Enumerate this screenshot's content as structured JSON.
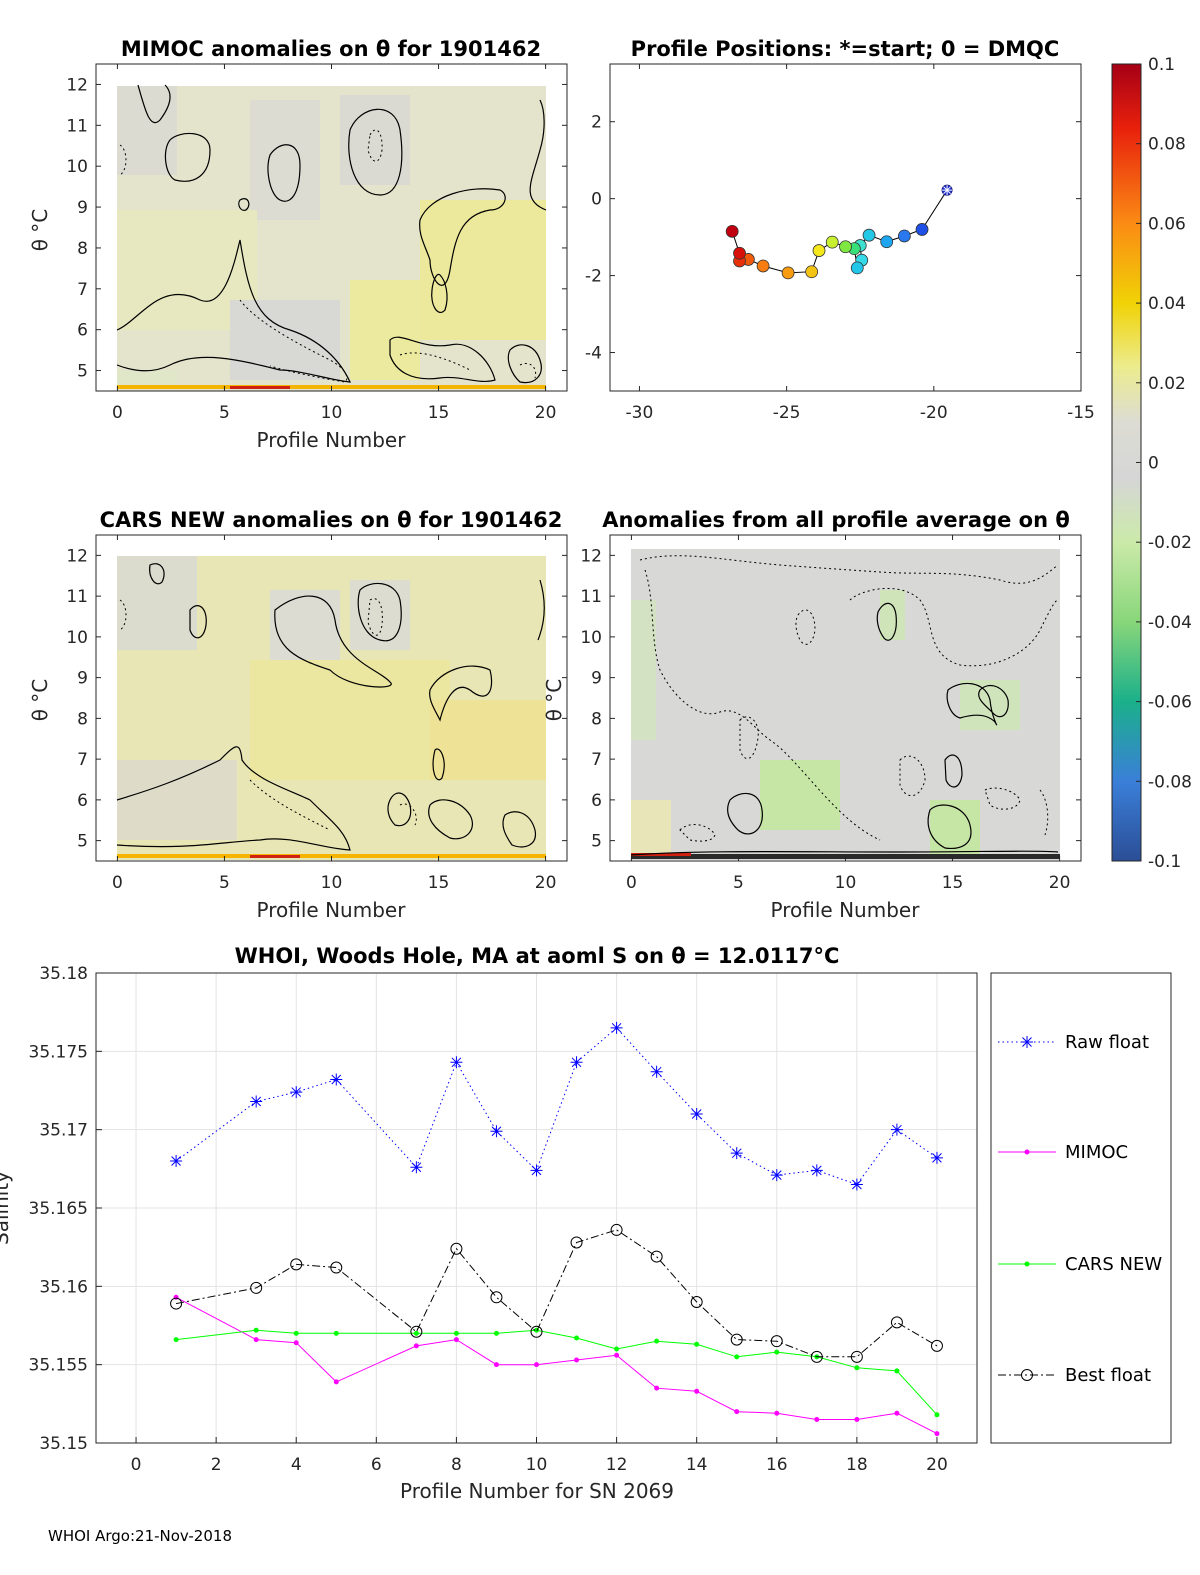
{
  "chart_data": [
    {
      "id": "mimoc",
      "type": "heatmap",
      "title": "MIMOC anomalies on θ  for 1901462",
      "xlabel": "Profile Number",
      "ylabel": "θ °C",
      "xlim": [
        -1,
        21
      ],
      "ylim": [
        4.5,
        12.5
      ],
      "xticks": [
        "0",
        "5",
        "10",
        "15",
        "20"
      ],
      "yticks": [
        "5",
        "6",
        "7",
        "8",
        "9",
        "10",
        "11",
        "12"
      ],
      "grid": false,
      "colorbar": "shared"
    },
    {
      "id": "positions",
      "type": "scatter",
      "title": "Profile Positions: *=start; 0 = DMQC",
      "xlim": [
        -31,
        -15
      ],
      "ylim": [
        -5,
        3.5
      ],
      "xticks": [
        "-30",
        "-25",
        "-20",
        "-15"
      ],
      "yticks": [
        "-4",
        "-2",
        "0",
        "2"
      ],
      "points": [
        {
          "lon": -19.55,
          "lat": 0.22,
          "start": true
        },
        {
          "lon": -20.4,
          "lat": -0.8
        },
        {
          "lon": -21.0,
          "lat": -0.97
        },
        {
          "lon": -21.6,
          "lat": -1.12
        },
        {
          "lon": -22.2,
          "lat": -0.95
        },
        {
          "lon": -22.5,
          "lat": -1.22
        },
        {
          "lon": -22.45,
          "lat": -1.6
        },
        {
          "lon": -22.6,
          "lat": -1.8
        },
        {
          "lon": -22.7,
          "lat": -1.3
        },
        {
          "lon": -23.0,
          "lat": -1.25
        },
        {
          "lon": -23.45,
          "lat": -1.13
        },
        {
          "lon": -23.9,
          "lat": -1.35
        },
        {
          "lon": -24.15,
          "lat": -1.9
        },
        {
          "lon": -24.95,
          "lat": -1.93
        },
        {
          "lon": -25.8,
          "lat": -1.75
        },
        {
          "lon": -26.3,
          "lat": -1.58
        },
        {
          "lon": -26.6,
          "lat": -1.62
        },
        {
          "lon": -26.6,
          "lat": -1.42
        },
        {
          "lon": -26.85,
          "lat": -0.85
        }
      ]
    },
    {
      "id": "colorbar",
      "type": "heatmap",
      "range": [
        -0.1,
        0.1
      ],
      "ticks": [
        "0.1",
        "0.08",
        "0.06",
        "0.04",
        "0.02",
        "0",
        "-0.02",
        "-0.04",
        "-0.06",
        "-0.08",
        "-0.1"
      ]
    },
    {
      "id": "cars",
      "type": "heatmap",
      "title": "CARS NEW anomalies on θ for 1901462",
      "xlabel": "Profile Number",
      "ylabel": "θ °C",
      "xlim": [
        -1,
        21
      ],
      "ylim": [
        4.5,
        12.5
      ],
      "xticks": [
        "0",
        "5",
        "10",
        "15",
        "20"
      ],
      "yticks": [
        "5",
        "6",
        "7",
        "8",
        "9",
        "10",
        "11",
        "12"
      ]
    },
    {
      "id": "allavg",
      "type": "heatmap",
      "title": "Anomalies from all profile average on θ",
      "xlabel": "Profile Number",
      "ylabel": "θ °C",
      "xlim": [
        -1,
        21
      ],
      "ylim": [
        4.5,
        12.5
      ],
      "xticks": [
        "0",
        "5",
        "10",
        "15",
        "20"
      ],
      "yticks": [
        "5",
        "6",
        "7",
        "8",
        "9",
        "10",
        "11",
        "12"
      ]
    },
    {
      "id": "salinity",
      "type": "line",
      "title": "WHOI, Woods Hole, MA at aoml S on θ = 12.0117°C",
      "xlabel": "Profile Number for SN 2069",
      "ylabel": "Salinity",
      "xlim": [
        -1,
        21
      ],
      "ylim": [
        35.15,
        35.18
      ],
      "xticks": [
        "0",
        "2",
        "4",
        "6",
        "8",
        "10",
        "12",
        "14",
        "16",
        "18",
        "20"
      ],
      "yticks": [
        "35.15",
        "35.155",
        "35.16",
        "35.165",
        "35.17",
        "35.175",
        "35.18"
      ],
      "grid": true,
      "legend_position": "outside-right",
      "x": [
        1,
        3,
        4,
        5,
        7,
        8,
        9,
        10,
        11,
        12,
        13,
        14,
        15,
        16,
        17,
        18,
        19,
        20
      ],
      "series": [
        {
          "name": "Raw float",
          "color": "#0000ff",
          "values": [
            35.168,
            35.1718,
            35.1724,
            35.1732,
            35.1676,
            35.1743,
            35.1699,
            35.1674,
            35.1743,
            35.1765,
            35.1737,
            35.171,
            35.1685,
            35.1671,
            35.1674,
            35.1665,
            35.17,
            35.1682
          ]
        },
        {
          "name": "MIMOC",
          "color": "#ff00ff",
          "values": [
            35.1593,
            35.1566,
            35.1564,
            35.1539,
            35.1562,
            35.1566,
            35.155,
            35.155,
            35.1553,
            35.1556,
            35.1535,
            35.1533,
            35.152,
            35.1519,
            35.1515,
            35.1515,
            35.1519,
            35.1506
          ]
        },
        {
          "name": "CARS NEW",
          "color": "#00ff00",
          "values": [
            35.1566,
            35.1572,
            35.157,
            35.157,
            35.157,
            35.157,
            35.157,
            35.1572,
            35.1567,
            35.156,
            35.1565,
            35.1563,
            35.1555,
            35.1558,
            35.1555,
            35.1548,
            35.1546,
            35.1518
          ]
        },
        {
          "name": "Best float",
          "color": "#000000",
          "values": [
            35.1589,
            35.1599,
            35.1614,
            35.1612,
            35.1571,
            35.1624,
            35.1593,
            35.1571,
            35.1628,
            35.1636,
            35.1619,
            35.159,
            35.1566,
            35.1565,
            35.1555,
            35.1555,
            35.1577,
            35.1562
          ]
        }
      ]
    }
  ],
  "footer": "WHOI Argo:21-Nov-2018"
}
